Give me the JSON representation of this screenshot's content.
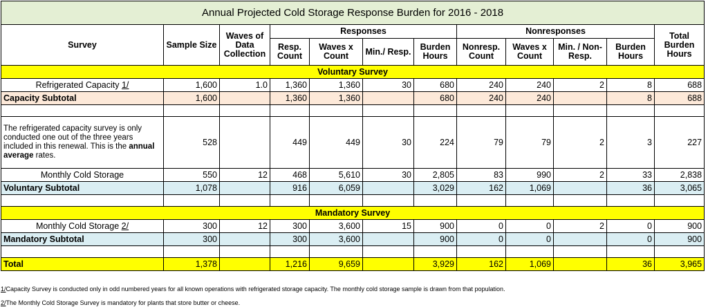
{
  "title": "Annual Projected Cold Storage Response Burden for 2016 - 2018",
  "header": {
    "survey": "Survey",
    "sample_size": "Sample Size",
    "waves": "Waves of Data Collection",
    "responses": "Responses",
    "nonresponses": "Nonresponses",
    "total": "Total Burden Hours",
    "sub": [
      "Resp. Count",
      "Waves x Count",
      "Min./ Resp.",
      "Burden Hours",
      "Nonresp. Count",
      "Waves x Count",
      "Min. / Non- Resp.",
      "Burden Hours"
    ]
  },
  "table": {
    "rows": [
      {
        "kind": "section",
        "label": "Voluntary Survey",
        "color": "#ffff00"
      },
      {
        "kind": "data",
        "label": "Refrigerated Capacity",
        "note": "1/",
        "cells": [
          "1,600",
          "1.0",
          "1,360",
          "1,360",
          "30",
          "680",
          "240",
          "240",
          "2",
          "8",
          "688"
        ]
      },
      {
        "kind": "subtotal",
        "label": "Capacity Subtotal",
        "color": "#fde9d9",
        "cells": [
          "1,600",
          null,
          "1,360",
          "1,360",
          null,
          "680",
          "240",
          "240",
          null,
          "8",
          "688"
        ]
      },
      {
        "kind": "blank"
      },
      {
        "kind": "paragraph",
        "text": [
          "The refrigerated capacity survey is only conducted one out of the three years included in this renewal. This is the ",
          "annual average",
          " rates."
        ],
        "cells": [
          "528",
          null,
          "449",
          "449",
          "30",
          "224",
          "79",
          "79",
          "2",
          "3",
          "227"
        ]
      },
      {
        "kind": "data",
        "label": "Monthly Cold Storage",
        "cells": [
          "550",
          "12",
          "468",
          "5,610",
          "30",
          "2,805",
          "83",
          "990",
          "2",
          "33",
          "2,838"
        ]
      },
      {
        "kind": "subtotal",
        "label": "Voluntary Subtotal",
        "color": "#daeef3",
        "cells": [
          "1,078",
          null,
          "916",
          "6,059",
          null,
          "3,029",
          "162",
          "1,069",
          null,
          "36",
          "3,065"
        ]
      },
      {
        "kind": "blank"
      },
      {
        "kind": "section",
        "label": "Mandatory Survey",
        "color": "#ffff00"
      },
      {
        "kind": "data",
        "label": "Monthly Cold Storage",
        "note": "2/",
        "cells": [
          "300",
          "12",
          "300",
          "3,600",
          "15",
          "900",
          "0",
          "0",
          "2",
          "0",
          "900"
        ]
      },
      {
        "kind": "subtotal",
        "label": "Mandatory Subtotal",
        "color": "#daeef3",
        "cells": [
          "300",
          null,
          "300",
          "3,600",
          null,
          "900",
          "0",
          "0",
          null,
          "0",
          "900"
        ]
      },
      {
        "kind": "blank"
      },
      {
        "kind": "subtotal",
        "label": "Total",
        "color": "#ffff00",
        "cells": [
          "1,378",
          null,
          "1,216",
          "9,659",
          null,
          "3,929",
          "162",
          "1,069",
          null,
          "36",
          "3,965"
        ]
      }
    ]
  },
  "footnotes": [
    {
      "mark": "1/",
      "text": "Capacity Survey is conducted only in odd numbered years for all known operations with refrigerated storage capacity.  The monthly cold storage sample is drawn from that population."
    },
    {
      "mark": "2/",
      "text": "The Monthly Cold Storage Survey is mandatory for plants that store butter or cheese."
    }
  ]
}
